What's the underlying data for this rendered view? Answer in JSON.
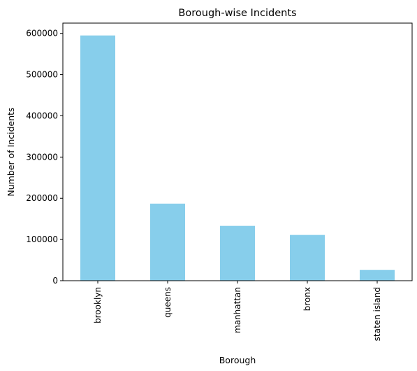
{
  "chart_data": {
    "type": "bar",
    "title": "Borough-wise Incidents",
    "xlabel": "Borough",
    "ylabel": "Number of Incidents",
    "categories": [
      "brooklyn",
      "queens",
      "manhattan",
      "bronx",
      "staten island"
    ],
    "values": [
      595000,
      187000,
      133000,
      111000,
      26000
    ],
    "ylim": [
      0,
      625000
    ],
    "yticks": [
      0,
      100000,
      200000,
      300000,
      400000,
      500000,
      600000
    ],
    "bar_color": "#87ceeb",
    "grid": false,
    "legend": "none"
  }
}
